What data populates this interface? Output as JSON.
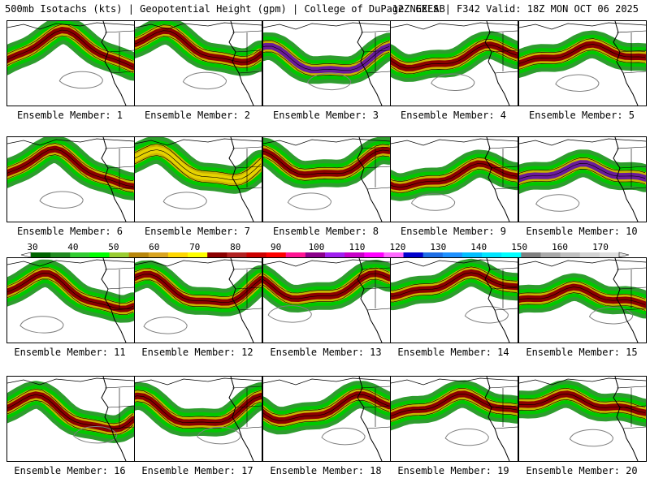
{
  "header": {
    "left": "500mb Isotachs (kts) | Geopotential Height (gpm) | College of DuPage NEXLAB",
    "right": "12Z GEFS | F342 Valid: 18Z MON OCT 06 2025"
  },
  "colorbar": {
    "ticks": [
      "30",
      "40",
      "50",
      "60",
      "70",
      "80",
      "90",
      "100",
      "110",
      "120",
      "130",
      "140",
      "150",
      "160",
      "170"
    ],
    "colors": [
      "#006400",
      "#228b22",
      "#32cd32",
      "#00ff00",
      "#9acd32",
      "#b8860b",
      "#daa520",
      "#ffd700",
      "#ffff00",
      "#8b0000",
      "#b22222",
      "#cd0000",
      "#ff0000",
      "#ff1493",
      "#8b008b",
      "#a020f0",
      "#c800c8",
      "#ff00ff",
      "#ff69ff",
      "#0000cd",
      "#1e6ee6",
      "#1e90ff",
      "#00bfff",
      "#00e5ff",
      "#00ffff",
      "#808080",
      "#a9a9a9",
      "#c0c0c0",
      "#d3d3d3",
      "#e0e0e0"
    ]
  },
  "members": [
    {
      "label": "Ensemble Member: 1",
      "max": "maroon"
    },
    {
      "label": "Ensemble Member: 2",
      "max": "maroon"
    },
    {
      "label": "Ensemble Member: 3",
      "max": "purple"
    },
    {
      "label": "Ensemble Member: 4",
      "max": "maroon"
    },
    {
      "label": "Ensemble Member: 5",
      "max": "maroon"
    },
    {
      "label": "Ensemble Member: 6",
      "max": "maroon"
    },
    {
      "label": "Ensemble Member: 7",
      "max": "yellow"
    },
    {
      "label": "Ensemble Member: 8",
      "max": "maroon"
    },
    {
      "label": "Ensemble Member: 9",
      "max": "maroon"
    },
    {
      "label": "Ensemble Member: 10",
      "max": "purple"
    },
    {
      "label": "Ensemble Member: 11",
      "max": "maroon"
    },
    {
      "label": "Ensemble Member: 12",
      "max": "maroon"
    },
    {
      "label": "Ensemble Member: 13",
      "max": "maroon"
    },
    {
      "label": "Ensemble Member: 14",
      "max": "maroon"
    },
    {
      "label": "Ensemble Member: 15",
      "max": "maroon"
    },
    {
      "label": "Ensemble Member: 16",
      "max": "maroon"
    },
    {
      "label": "Ensemble Member: 17",
      "max": "maroon"
    },
    {
      "label": "Ensemble Member: 18",
      "max": "maroon"
    },
    {
      "label": "Ensemble Member: 19",
      "max": "maroon"
    },
    {
      "label": "Ensemble Member: 20",
      "max": "maroon"
    }
  ]
}
